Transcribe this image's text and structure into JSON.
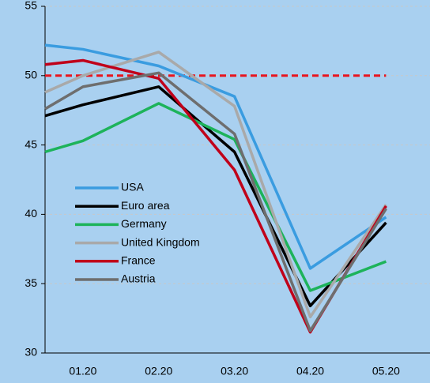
{
  "chart_data": {
    "type": "line",
    "x": [
      0.5,
      1,
      2,
      3,
      4,
      5
    ],
    "xlim": [
      0.5,
      5.58
    ],
    "xticks": [
      {
        "value": 1,
        "label": "01.20"
      },
      {
        "value": 2,
        "label": "02.20"
      },
      {
        "value": 3,
        "label": "03.20"
      },
      {
        "value": 4,
        "label": "04.20"
      },
      {
        "value": 5,
        "label": "05.20"
      }
    ],
    "ylim": [
      30,
      55
    ],
    "yticks": [
      30,
      35,
      40,
      45,
      50,
      55
    ],
    "grid": true,
    "legend": "left",
    "reference_line": {
      "value": 50,
      "color": "#e8141e"
    },
    "series": [
      {
        "name": "USA",
        "color": "#3a9ce0",
        "values": [
          52.2,
          51.9,
          50.7,
          48.5,
          36.1,
          39.8
        ]
      },
      {
        "name": "Euro area",
        "color": "#000000",
        "values": [
          47.1,
          47.9,
          49.2,
          44.5,
          33.4,
          39.4
        ]
      },
      {
        "name": "Germany",
        "color": "#1db35a",
        "values": [
          44.5,
          45.3,
          48.0,
          45.4,
          34.5,
          36.6
        ]
      },
      {
        "name": "United Kingdom",
        "color": "#a9a9a9",
        "values": [
          48.8,
          50.0,
          51.7,
          47.8,
          32.6,
          40.7
        ]
      },
      {
        "name": "France",
        "color": "#c0001a",
        "values": [
          50.8,
          51.1,
          49.8,
          43.2,
          31.5,
          40.6
        ]
      },
      {
        "name": "Austria",
        "color": "#6e6e6e",
        "values": [
          47.6,
          49.2,
          50.2,
          45.8,
          31.6,
          40.4
        ]
      }
    ]
  }
}
